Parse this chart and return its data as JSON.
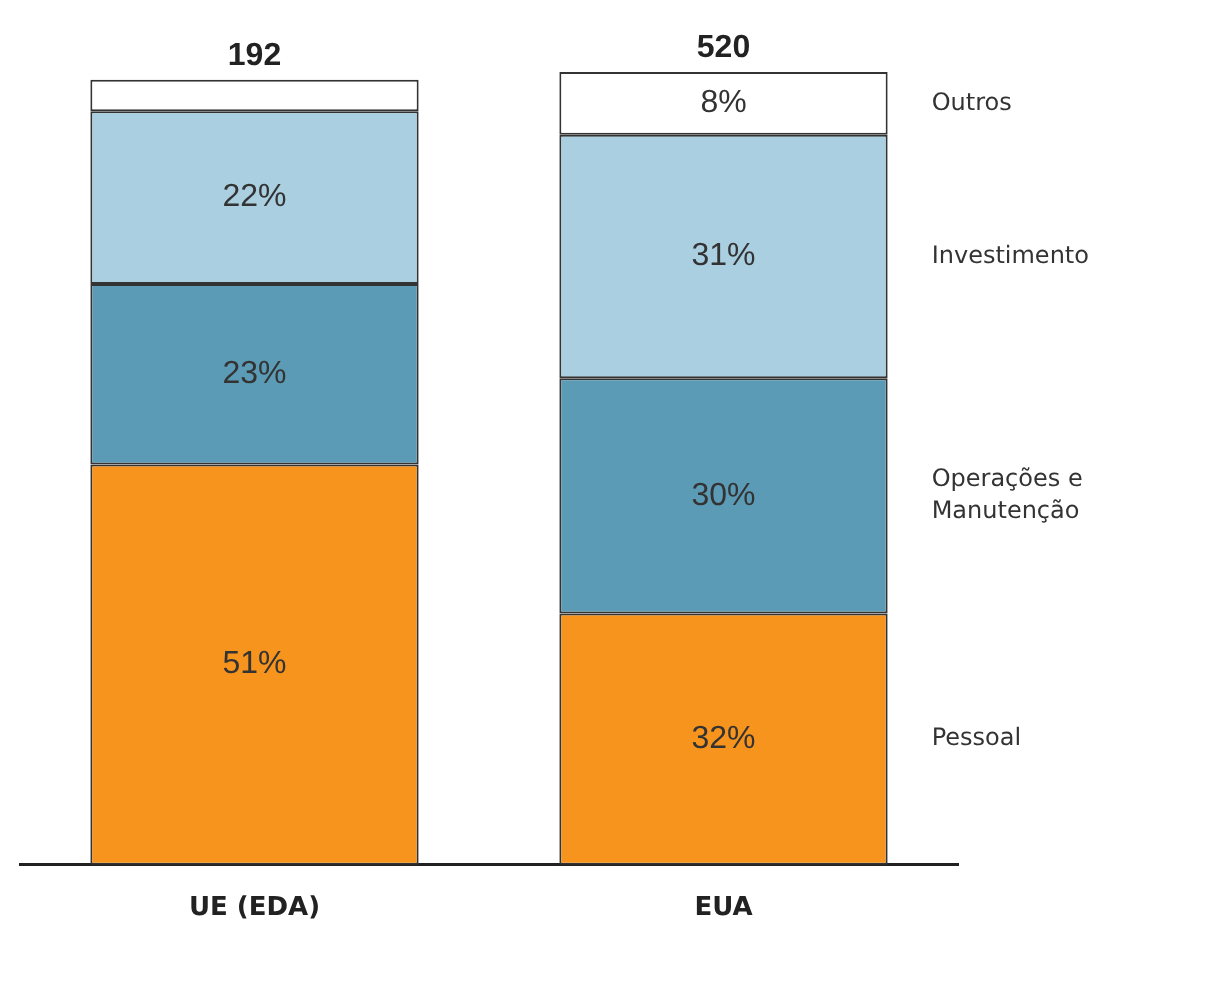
{
  "chart_data": {
    "type": "bar",
    "stacked": true,
    "categories": [
      "UE (EDA)",
      "EUA"
    ],
    "series": [
      {
        "name": "Pessoal",
        "color": "#f7941d",
        "values": [
          51,
          32
        ],
        "value_labels": [
          "51%",
          "32%"
        ]
      },
      {
        "name": "Operações e Manutenção",
        "color": "#5b9bb5",
        "values": [
          23,
          30
        ],
        "value_labels": [
          "23%",
          "30%"
        ]
      },
      {
        "name": "Investimento",
        "color": "#a9cfe0",
        "values": [
          22,
          31
        ],
        "value_labels": [
          "22%",
          "31%"
        ]
      },
      {
        "name": "Outros",
        "color": "#ffffff",
        "values": [
          4,
          8
        ],
        "value_labels": [
          null,
          "8%"
        ]
      }
    ],
    "annotations": [
      "192",
      "520"
    ],
    "legend": "right",
    "grid": false
  }
}
